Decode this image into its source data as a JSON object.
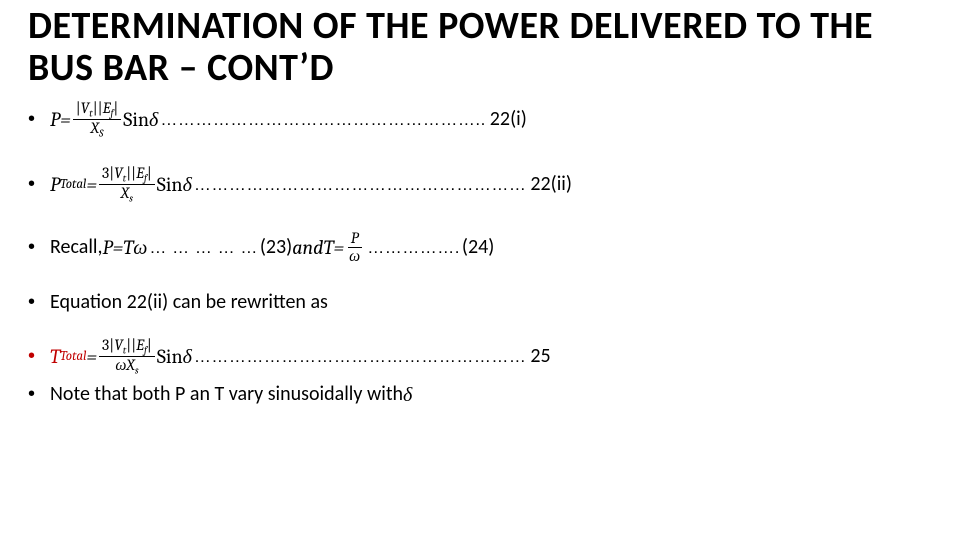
{
  "title": "DETERMINATION OF THE POWER DELIVERED TO THE BUS BAR – CONT’D",
  "eq22i": {
    "lhs_var": "P",
    "equals": " = ",
    "frac_num_pre": "|",
    "num_Vt": "V",
    "num_Vt_sub": "t",
    "num_mid": "||",
    "num_Ef": "E",
    "num_Ef_sub": "f",
    "frac_num_post": "|",
    "den_X": "X",
    "den_X_sub": "S",
    "sin": "Sin",
    "delta": "δ",
    "dots": "  ………………………………………………..",
    "ref": " 22(i)"
  },
  "eq22ii": {
    "lhs_var": "P",
    "lhs_sub": "Total",
    "equals": " = ",
    "num_three": "3",
    "frac_num_pre": "|",
    "num_Vt": "V",
    "num_Vt_sub": "t",
    "num_mid": "||",
    "num_Ef": "E",
    "num_Ef_sub": "f",
    "frac_num_post": "|",
    "den_X": "X",
    "den_X_sub": "s",
    "sin": "Sin",
    "delta": "δ",
    "dots": "  …………………………………………………",
    "ref": " 22(ii)"
  },
  "eq23_24": {
    "recall": "Recall, ",
    "P": "P",
    "eq1": " = ",
    "T": "T",
    "omega": "ω",
    "dots1": "  … … … … … ",
    "paren23": "(23)",
    "and": " and  ",
    "T2": "T",
    "eq2": " = ",
    "frac_num": "P",
    "frac_den": "ω",
    "dots2": " ……………. ",
    "paren24": "(24)"
  },
  "eq_rewrite": "Equation 22(ii) can be rewritten as",
  "eq25": {
    "lhs_var": "T",
    "lhs_sub": "Total",
    "equals": " = ",
    "num_three": "3",
    "frac_num_pre": "|",
    "num_Vt": "V",
    "num_Vt_sub": "t",
    "num_mid": "||",
    "num_Ef": "E",
    "num_Ef_sub": "f",
    "frac_num_post": "|",
    "den_omega": "ω",
    "den_X": "X",
    "den_X_sub": "s",
    "sin": "Sin",
    "delta": "δ",
    "dots": " …………………………………………………",
    "ref": " 25"
  },
  "note": {
    "pre": "Note that both P an T vary sinusoidally with ",
    "delta": "δ"
  }
}
